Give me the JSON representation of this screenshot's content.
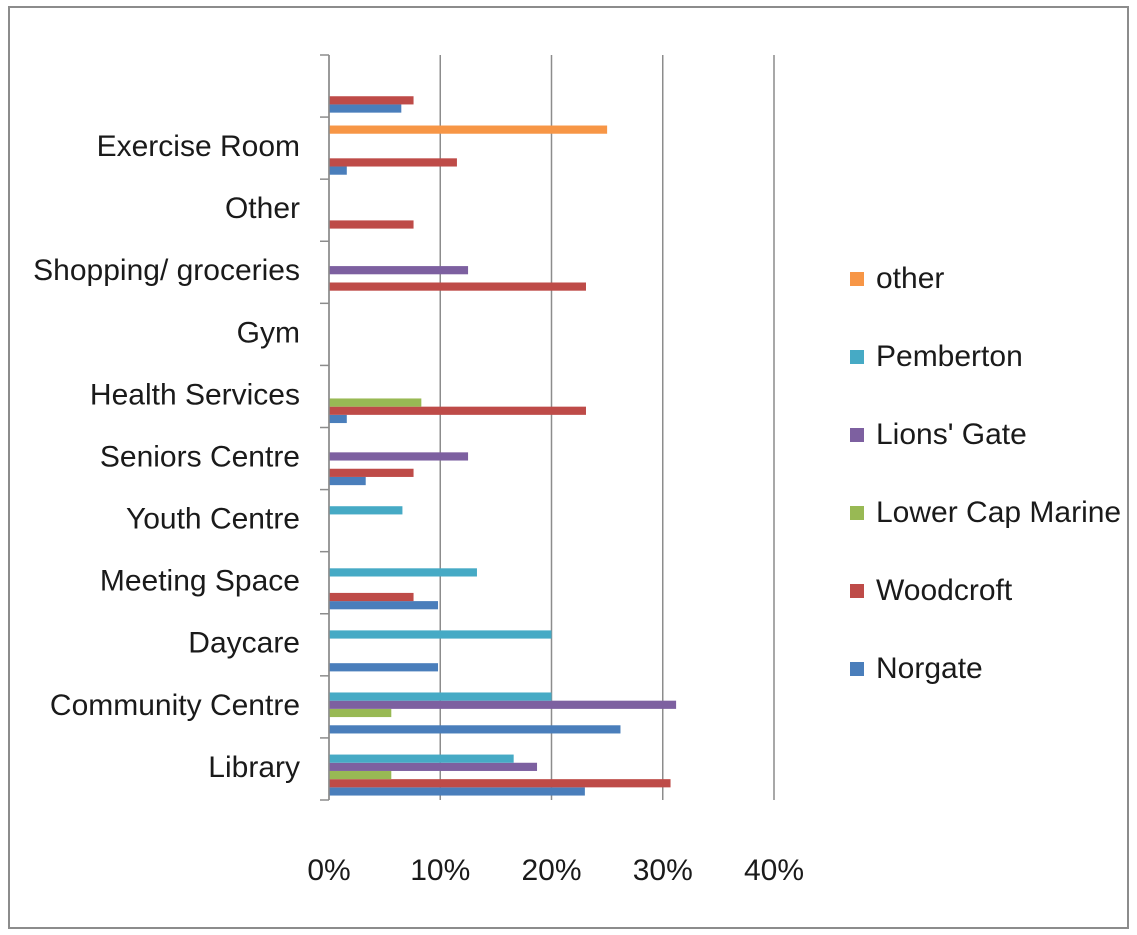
{
  "chart_data": {
    "type": "bar",
    "orientation": "horizontal",
    "categories": [
      "Library",
      "Community Centre",
      "Daycare",
      "Meeting Space",
      "Youth Centre",
      "Seniors Centre",
      "Health Services",
      "Gym",
      "Shopping/ groceries",
      "Other",
      "Exercise Room",
      ""
    ],
    "series": [
      {
        "name": "Norgate",
        "color": "#4a7ebb",
        "values": [
          23,
          26.2,
          9.8,
          9.8,
          0,
          3.3,
          1.6,
          0,
          0,
          0,
          1.6,
          6.5
        ]
      },
      {
        "name": "Woodcroft",
        "color": "#be4b48",
        "values": [
          30.7,
          0,
          0,
          7.6,
          0,
          7.6,
          23.1,
          0,
          23.1,
          7.6,
          11.5,
          7.6
        ]
      },
      {
        "name": "Lower Cap Marine",
        "color": "#98b954",
        "values": [
          5.6,
          5.6,
          0,
          0,
          0,
          0,
          8.3,
          0,
          0,
          0,
          0,
          0
        ]
      },
      {
        "name": "Lions' Gate",
        "color": "#7d60a0",
        "values": [
          18.7,
          31.2,
          0,
          0,
          0,
          12.5,
          0,
          0,
          12.5,
          0,
          0,
          0
        ]
      },
      {
        "name": "Pemberton",
        "color": "#46aac5",
        "values": [
          16.6,
          20,
          20,
          13.3,
          6.6,
          0,
          0,
          0,
          0,
          0,
          0,
          0
        ]
      },
      {
        "name": "other",
        "color": "#f79646",
        "values": [
          0,
          0,
          0,
          0,
          0,
          0,
          0,
          0,
          0,
          0,
          25,
          0
        ]
      }
    ],
    "xlim": [
      0,
      40
    ],
    "x_ticks": [
      "0%",
      "10%",
      "20%",
      "30%",
      "40%"
    ],
    "grid": true,
    "legend_position": "right"
  }
}
